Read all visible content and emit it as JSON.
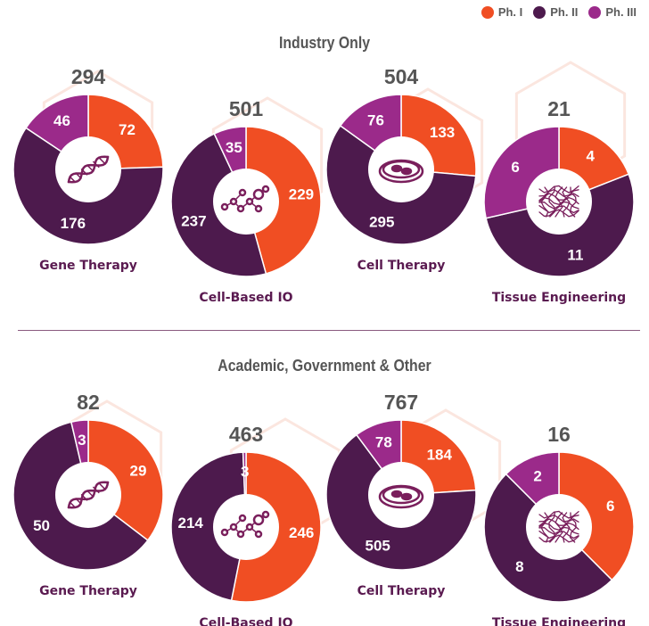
{
  "legend": [
    {
      "label": "Ph. I",
      "color": "#f04e23"
    },
    {
      "label": "Ph. II",
      "color": "#4d1a4d"
    },
    {
      "label": "Ph. III",
      "color": "#9b2a8a"
    }
  ],
  "sections": [
    {
      "title": "Industry Only"
    },
    {
      "title": "Academic, Government & Other"
    }
  ],
  "chart_data": [
    {
      "type": "pie",
      "section": "Industry Only",
      "category": "Gene Therapy",
      "total": 294,
      "icon": "dna-icon",
      "values": [
        72,
        176,
        46
      ],
      "series": [
        "Ph. I",
        "Ph. II",
        "Ph. III"
      ]
    },
    {
      "type": "pie",
      "section": "Industry Only",
      "category": "Cell-Based IO",
      "total": 501,
      "icon": "molecule-icon",
      "values": [
        229,
        237,
        35
      ],
      "series": [
        "Ph. I",
        "Ph. II",
        "Ph. III"
      ]
    },
    {
      "type": "pie",
      "section": "Industry Only",
      "category": "Cell Therapy",
      "total": 504,
      "icon": "petri-dish-icon",
      "values": [
        133,
        295,
        76
      ],
      "series": [
        "Ph. I",
        "Ph. II",
        "Ph. III"
      ]
    },
    {
      "type": "pie",
      "section": "Industry Only",
      "category": "Tissue Engineering",
      "total": 21,
      "icon": "fibers-icon",
      "values": [
        4,
        11,
        6
      ],
      "series": [
        "Ph. I",
        "Ph. II",
        "Ph. III"
      ]
    },
    {
      "type": "pie",
      "section": "Academic, Government & Other",
      "category": "Gene Therapy",
      "total": 82,
      "icon": "dna-icon",
      "values": [
        29,
        50,
        3
      ],
      "series": [
        "Ph. I",
        "Ph. II",
        "Ph. III"
      ]
    },
    {
      "type": "pie",
      "section": "Academic, Government & Other",
      "category": "Cell-Based IO",
      "total": 463,
      "icon": "molecule-icon",
      "values": [
        246,
        214,
        3
      ],
      "series": [
        "Ph. I",
        "Ph. II",
        "Ph. III"
      ]
    },
    {
      "type": "pie",
      "section": "Academic, Government & Other",
      "category": "Cell Therapy",
      "total": 767,
      "icon": "petri-dish-icon",
      "values": [
        184,
        505,
        78
      ],
      "series": [
        "Ph. I",
        "Ph. II",
        "Ph. III"
      ]
    },
    {
      "type": "pie",
      "section": "Academic, Government & Other",
      "category": "Tissue Engineering",
      "total": 16,
      "icon": "fibers-icon",
      "values": [
        6,
        8,
        2
      ],
      "series": [
        "Ph. I",
        "Ph. II",
        "Ph. III"
      ]
    }
  ]
}
